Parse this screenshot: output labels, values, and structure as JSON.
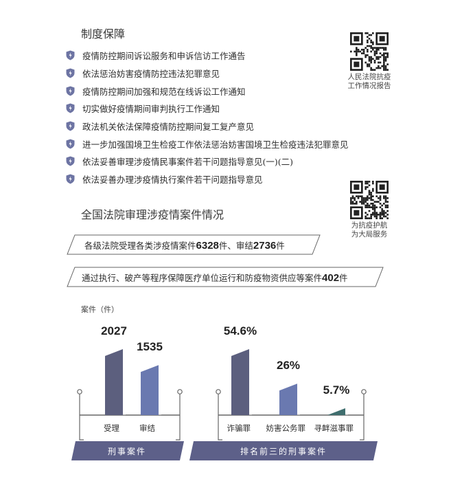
{
  "section1": {
    "title": "制度保障",
    "items": [
      "疫情防控期间诉讼服务和申诉信访工作通告",
      "依法惩治妨害疫情防控违法犯罪意见",
      "疫情防控期间加强和规范在线诉讼工作通知",
      "切实做好疫情期间审判执行工作通知",
      "政法机关依法保障疫情防控期间复工复产意见",
      "进一步加强国境卫生检疫工作依法惩治妨害国境卫生检疫违法犯罪意见",
      "依法妥善审理涉疫情民事案件若干问题指导意见(一)(二)",
      "依法妥善办理涉疫情执行案件若干问题指导意见"
    ]
  },
  "qr1": {
    "caption_line1": "人民法院抗疫",
    "caption_line2": "工作情况报告"
  },
  "qr2": {
    "caption_line1": "为抗疫护航",
    "caption_line2": "为大局服务"
  },
  "section2": {
    "title": "全国法院审理涉疫情案件情况",
    "stat1": {
      "prefix": "各级法院受理各类涉疫情案件",
      "num1": "6328",
      "mid": "件、审结",
      "num2": "2736",
      "suffix": "件"
    },
    "stat2": {
      "prefix": "通过执行、破产等程序保障医疗单位运行和防疫物资供应等案件",
      "num": "402",
      "suffix": "件"
    }
  },
  "colors": {
    "bar_dark": "#5c5f7e",
    "bar_blue": "#6a79b0",
    "bar_teal": "#3f6e6e",
    "band": "#5d6089",
    "line": "#666666"
  },
  "chart_data": [
    {
      "type": "bar",
      "ylabel": "案件（件）",
      "group_label": "刑事案件",
      "categories": [
        "受理",
        "审结"
      ],
      "values": [
        2027,
        1535
      ],
      "value_labels": [
        "2027",
        "1535"
      ]
    },
    {
      "type": "bar",
      "group_label": "排名前三的刑事案件",
      "categories": [
        "诈骗罪",
        "妨害公务罪",
        "寻衅滋事罪"
      ],
      "values": [
        54.6,
        26,
        5.7
      ],
      "value_labels": [
        "54.6%",
        "26%",
        "5.7%"
      ]
    }
  ]
}
